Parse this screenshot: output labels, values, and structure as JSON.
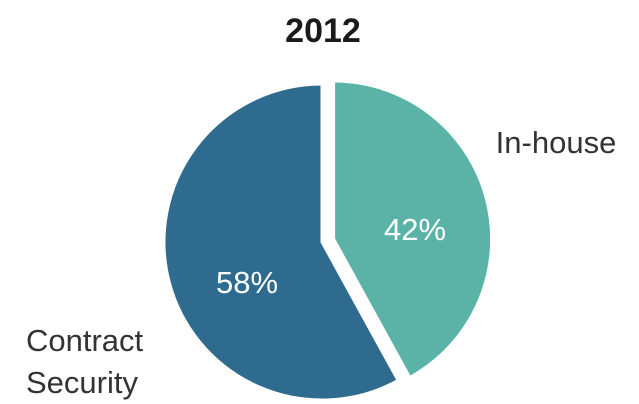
{
  "chart_data": {
    "type": "pie",
    "title": "2012",
    "slices": [
      {
        "label": "In-house",
        "value": 42,
        "value_label": "42%",
        "color": "#5ab3a6"
      },
      {
        "label": "Contract Security",
        "label_lines": [
          "Contract",
          "Security"
        ],
        "value": 58,
        "value_label": "58%",
        "color": "#2e6b8e"
      }
    ],
    "start": "12 o'clock",
    "direction": "clockwise",
    "exploded": "In-house"
  }
}
